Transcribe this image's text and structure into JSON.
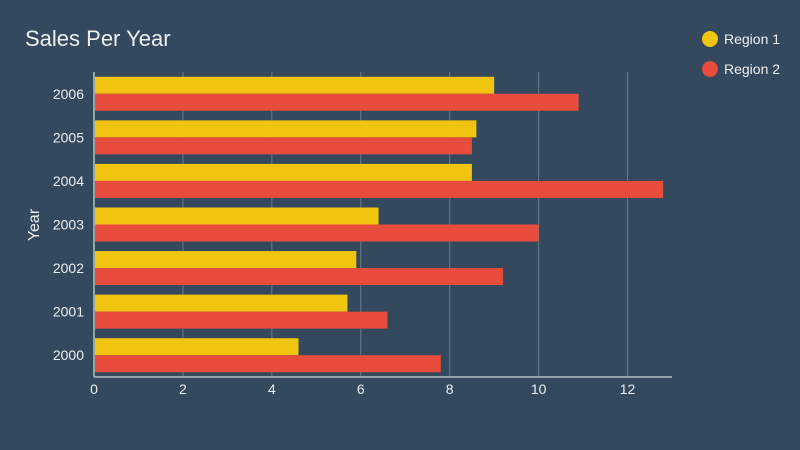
{
  "chart_data": {
    "type": "bar",
    "orientation": "horizontal",
    "title": "Sales Per Year",
    "xlabel": "",
    "ylabel": "Year",
    "categories": [
      "2000",
      "2001",
      "2002",
      "2003",
      "2004",
      "2005",
      "2006"
    ],
    "series": [
      {
        "name": "Region 1",
        "color": "#f1c40f",
        "values": [
          4.6,
          5.7,
          5.9,
          6.4,
          8.5,
          8.6,
          9.0
        ]
      },
      {
        "name": "Region 2",
        "color": "#e74c3c",
        "values": [
          7.8,
          6.6,
          9.2,
          10.0,
          12.8,
          8.5,
          10.9
        ]
      }
    ],
    "xlim": [
      0,
      13
    ],
    "xticks": [
      0,
      2,
      4,
      6,
      8,
      10,
      12
    ],
    "grid": true,
    "legend_position": "top-right"
  }
}
